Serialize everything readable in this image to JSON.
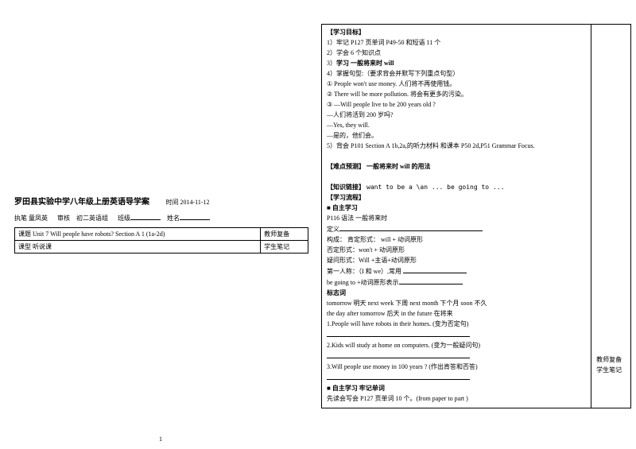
{
  "left": {
    "title": "罗田县实验中学八年级上册英语导学案",
    "date_label": "时间",
    "date": "2014-11-12",
    "author_label": "执笔 童凤英",
    "review_label": "审核",
    "review_value": "初二英语组",
    "class_label": "班级",
    "name_label": "姓名",
    "row1": "课题 Unit 7 Will people have robots?     Section A 1 (1a-2d)",
    "row2": "课型   听说课",
    "side1": "教师复备",
    "side2": "学生笔记"
  },
  "right": {
    "goals_title": "【学习目标】",
    "g1": "1）牢记 P127 页单词 P49-50 和短语 11 个",
    "g2": "2）学会 6 个知识点",
    "g3": "3）学习  一般将来时  will",
    "g4": "4）掌握句型:（要求背会并默写下列重点句型）",
    "g4_1": "① People won't use money.  人们将不再使用钱。",
    "g4_2": "② There will be more pollution. 将会有更多的污染。",
    "g4_3": "③ —Will people live to be 200 years old ?",
    "g4_3b": "     —人们将活到 200 岁吗?",
    "g4_3c": "     —Yes, they will.",
    "g4_3d": "     —是的，他们会。",
    "g5": "5）背会 P101 Section A 1b,2a,的听力材料  和课本 P50 2d,P51 Grammar Focus.",
    "diff_title": "【难点预测】   一般将来时  will 的用法",
    "link_title": "【知识链接】",
    "link_text": "want to be a \\an ... be going to ...",
    "flow_title": "【学习流程】",
    "self1_title": "■   自主学习",
    "p116": "P116  语法    一般将来时",
    "def_label": "定义",
    "struct": "构成：  肯定形式：  will +  动词原形",
    "neg": "否定形式：won't  +  动词原形",
    "ques": "疑问形式：Will +主语+动词原形",
    "first": "第一人称：（I 和 we）,常用",
    "going": "be going to +动词原形表示",
    "marker_title": "标志词",
    "marker1": "tomorrow  明天    next week  下周   next month  下个月     soon  不久",
    "marker2": "the day after tomorrow  后天    in the future  在将来",
    "ex1": "1.People will have robots in their homes. (变为否定句)",
    "ex2": "2.Kids will study at home on computers. (变为一般疑问句)",
    "ex3": "3.Will people use money in 100 years ? (作出肯答和否答)",
    "self2_title": "■   自主学习     牢记单词",
    "self2_text": "先读会写会 P127 页单词 10 个。(from paper to part )",
    "side1": "教师复备",
    "side2": "学生笔记"
  },
  "page_number": "1"
}
